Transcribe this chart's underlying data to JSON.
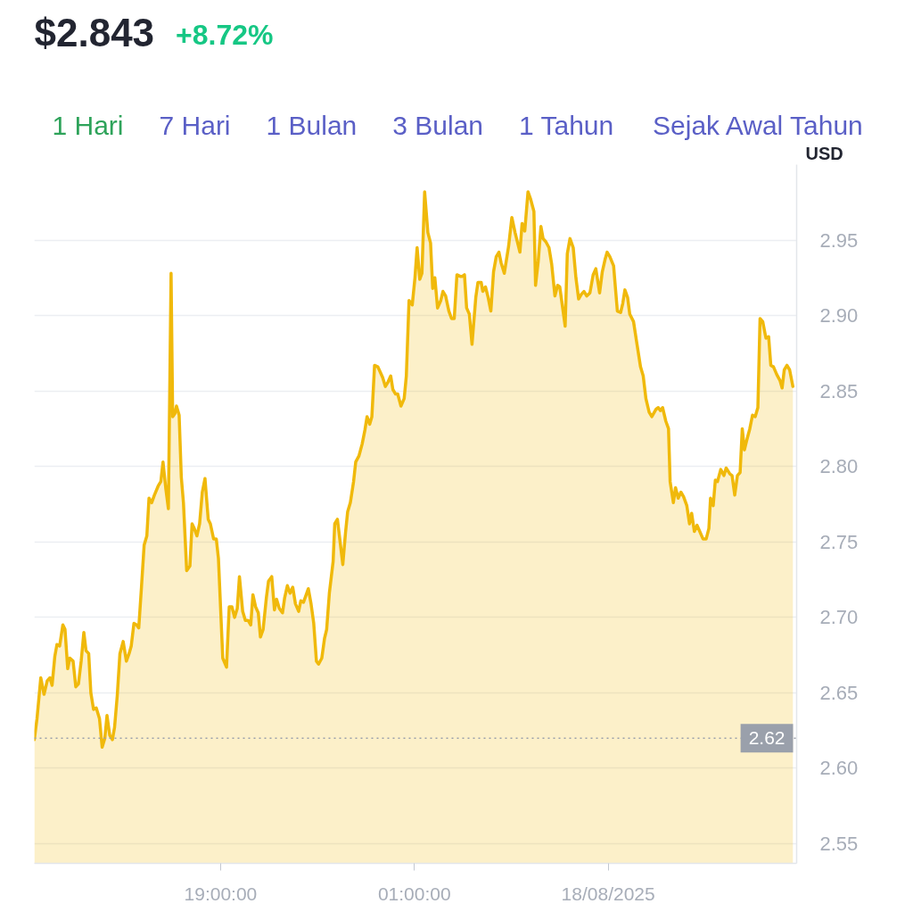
{
  "chart_data": {
    "type": "area",
    "title": "$2.843",
    "subtitle": "+8.72%",
    "ylabel": "USD",
    "annotations": [
      "1 Hari",
      "7 Hari",
      "1 Bulan",
      "3 Bulan",
      "1 Tahun",
      "Sejak Awal Tahun"
    ],
    "xlim": [
      "2025-08-17T13:14",
      "2025-08-18T12:50"
    ],
    "xticks": [
      {
        "value": "2025-08-17T19:00",
        "label": "19:00:00"
      },
      {
        "value": "2025-08-18T01:00",
        "label": "01:00:00"
      },
      {
        "value": "2025-08-18T07:00",
        "label": "18/08/2025"
      }
    ],
    "ylim": [
      2.537,
      3.0
    ],
    "yticks": [
      2.55,
      {
        "value": 2.6,
        "label": "2.60"
      },
      2.65,
      {
        "value": 2.7,
        "label": "2.70"
      },
      2.75,
      {
        "value": 2.8,
        "label": "2.80"
      },
      2.85,
      {
        "value": 2.9,
        "label": "2.90"
      },
      2.95
    ],
    "grid": "y",
    "ref_lines": [
      {
        "axis": "y",
        "value": 2.62,
        "label": "2.62",
        "color": "#9aa0ab",
        "line_style": "dotted"
      }
    ],
    "x": [
      "2025-08-17T13:14",
      "2025-08-17T13:19",
      "2025-08-17T13:26",
      "2025-08-17T13:32",
      "2025-08-17T13:38",
      "2025-08-17T13:43",
      "2025-08-17T13:47",
      "2025-08-17T13:52",
      "2025-08-17T13:56",
      "2025-08-17T14:01",
      "2025-08-17T14:07",
      "2025-08-17T14:11",
      "2025-08-17T14:16",
      "2025-08-17T14:20",
      "2025-08-17T14:26",
      "2025-08-17T14:31",
      "2025-08-17T14:36",
      "2025-08-17T14:41",
      "2025-08-17T14:46",
      "2025-08-17T14:50",
      "2025-08-17T14:55",
      "2025-08-17T14:59",
      "2025-08-17T15:04",
      "2025-08-17T15:09",
      "2025-08-17T15:15",
      "2025-08-17T15:20",
      "2025-08-17T15:25",
      "2025-08-17T15:29",
      "2025-08-17T15:34",
      "2025-08-17T15:39",
      "2025-08-17T15:43",
      "2025-08-17T15:48",
      "2025-08-17T15:53",
      "2025-08-17T15:59",
      "2025-08-17T16:05",
      "2025-08-17T16:10",
      "2025-08-17T16:14",
      "2025-08-17T16:19",
      "2025-08-17T16:24",
      "2025-08-17T16:28",
      "2025-08-17T16:33",
      "2025-08-17T16:38",
      "2025-08-17T16:43",
      "2025-08-17T16:47",
      "2025-08-17T16:52",
      "2025-08-17T16:57",
      "2025-08-17T17:04",
      "2025-08-17T17:09",
      "2025-08-17T17:13",
      "2025-08-17T17:18",
      "2025-08-17T17:23",
      "2025-08-17T17:25",
      "2025-08-17T17:28",
      "2025-08-17T17:31",
      "2025-08-17T17:35",
      "2025-08-17T17:38",
      "2025-08-17T17:43",
      "2025-08-17T17:47",
      "2025-08-17T17:51",
      "2025-08-17T17:57",
      "2025-08-17T18:03",
      "2025-08-17T18:07",
      "2025-08-17T18:11",
      "2025-08-17T18:16",
      "2025-08-17T18:21",
      "2025-08-17T18:26",
      "2025-08-17T18:31",
      "2025-08-17T18:33",
      "2025-08-17T18:37",
      "2025-08-17T18:41",
      "2025-08-17T18:47",
      "2025-08-17T18:52",
      "2025-08-17T18:56",
      "2025-08-17T19:04",
      "2025-08-17T19:11",
      "2025-08-17T19:16",
      "2025-08-17T19:21",
      "2025-08-17T19:26",
      "2025-08-17T19:31",
      "2025-08-17T19:35",
      "2025-08-17T19:41",
      "2025-08-17T19:46",
      "2025-08-17T19:51",
      "2025-08-17T19:56",
      "2025-08-17T20:00",
      "2025-08-17T20:05",
      "2025-08-17T20:10",
      "2025-08-17T20:14",
      "2025-08-17T20:19",
      "2025-08-17T20:25",
      "2025-08-17T20:29",
      "2025-08-17T20:35",
      "2025-08-17T20:40",
      "2025-08-17T20:44",
      "2025-08-17T20:49",
      "2025-08-17T20:55",
      "2025-08-17T20:59",
      "2025-08-17T21:04",
      "2025-08-17T21:09",
      "2025-08-17T21:14",
      "2025-08-17T21:19",
      "2025-08-17T21:25",
      "2025-08-17T21:29",
      "2025-08-17T21:34",
      "2025-08-17T21:38",
      "2025-08-17T21:43",
      "2025-08-17T21:48",
      "2025-08-17T21:53",
      "2025-08-17T21:58",
      "2025-08-17T22:02",
      "2025-08-17T22:08",
      "2025-08-17T22:13",
      "2025-08-17T22:17",
      "2025-08-17T22:22",
      "2025-08-17T22:29",
      "2025-08-17T22:32",
      "2025-08-17T22:37",
      "2025-08-17T22:42",
      "2025-08-17T22:47",
      "2025-08-17T22:52",
      "2025-08-17T22:56",
      "2025-08-17T23:01",
      "2025-08-17T23:07",
      "2025-08-17T23:11",
      "2025-08-17T23:17",
      "2025-08-17T23:23",
      "2025-08-17T23:28",
      "2025-08-17T23:32",
      "2025-08-17T23:37",
      "2025-08-17T23:41",
      "2025-08-17T23:46",
      "2025-08-17T23:52",
      "2025-08-17T23:56",
      "2025-08-18T00:01",
      "2025-08-18T00:06",
      "2025-08-18T00:11",
      "2025-08-18T00:16",
      "2025-08-18T00:20",
      "2025-08-18T00:25",
      "2025-08-18T00:29",
      "2025-08-18T00:35",
      "2025-08-18T00:41",
      "2025-08-18T00:45",
      "2025-08-18T00:50",
      "2025-08-18T00:56",
      "2025-08-18T01:01",
      "2025-08-18T01:05",
      "2025-08-18T01:10",
      "2025-08-18T01:14",
      "2025-08-18T01:19",
      "2025-08-18T01:25",
      "2025-08-18T01:30",
      "2025-08-18T01:34",
      "2025-08-18T01:38",
      "2025-08-18T01:43",
      "2025-08-18T01:49",
      "2025-08-18T01:53",
      "2025-08-18T01:58",
      "2025-08-18T02:04",
      "2025-08-18T02:09",
      "2025-08-18T02:14",
      "2025-08-18T02:19",
      "2025-08-18T02:25",
      "2025-08-18T02:29",
      "2025-08-18T02:33",
      "2025-08-18T02:37",
      "2025-08-18T02:42",
      "2025-08-18T02:47",
      "2025-08-18T02:54",
      "2025-08-18T02:58",
      "2025-08-18T03:04",
      "2025-08-18T03:07",
      "2025-08-18T03:12",
      "2025-08-18T03:17",
      "2025-08-18T03:22",
      "2025-08-18T03:27",
      "2025-08-18T03:32",
      "2025-08-18T03:37",
      "2025-08-18T03:41",
      "2025-08-18T03:47",
      "2025-08-18T03:55",
      "2025-08-18T04:01",
      "2025-08-18T04:07",
      "2025-08-18T04:16",
      "2025-08-18T04:20",
      "2025-08-18T04:25",
      "2025-08-18T04:31",
      "2025-08-18T04:36",
      "2025-08-18T04:42",
      "2025-08-18T04:45",
      "2025-08-18T04:50",
      "2025-08-18T04:55",
      "2025-08-18T04:59",
      "2025-08-18T05:04",
      "2025-08-18T05:10",
      "2025-08-18T05:15",
      "2025-08-18T05:21",
      "2025-08-18T05:26",
      "2025-08-18T05:30",
      "2025-08-18T05:35",
      "2025-08-18T05:40",
      "2025-08-18T05:44",
      "2025-08-18T05:49",
      "2025-08-18T05:55",
      "2025-08-18T06:00",
      "2025-08-18T06:05",
      "2025-08-18T06:10",
      "2025-08-18T06:15",
      "2025-08-18T06:20",
      "2025-08-18T06:26",
      "2025-08-18T06:32",
      "2025-08-18T06:37",
      "2025-08-18T06:44",
      "2025-08-18T06:49",
      "2025-08-18T06:54",
      "2025-08-18T06:58",
      "2025-08-18T07:03",
      "2025-08-18T07:10",
      "2025-08-18T07:13",
      "2025-08-18T07:17",
      "2025-08-18T07:23",
      "2025-08-18T07:27",
      "2025-08-18T07:31",
      "2025-08-18T07:36",
      "2025-08-18T07:40",
      "2025-08-18T07:47",
      "2025-08-18T07:53",
      "2025-08-18T08:00",
      "2025-08-18T08:05",
      "2025-08-18T08:10",
      "2025-08-18T08:16",
      "2025-08-18T08:21",
      "2025-08-18T08:29",
      "2025-08-18T08:33",
      "2025-08-18T08:37",
      "2025-08-18T08:41",
      "2025-08-18T08:47",
      "2025-08-18T08:52",
      "2025-08-18T08:55",
      "2025-08-18T09:01",
      "2025-08-18T09:05",
      "2025-08-18T09:10",
      "2025-08-18T09:15",
      "2025-08-18T09:20",
      "2025-08-18T09:26",
      "2025-08-18T09:31",
      "2025-08-18T09:35",
      "2025-08-18T09:40",
      "2025-08-18T09:45",
      "2025-08-18T09:50",
      "2025-08-18T09:56",
      "2025-08-18T10:02",
      "2025-08-18T10:07",
      "2025-08-18T10:10",
      "2025-08-18T10:15",
      "2025-08-18T10:19",
      "2025-08-18T10:23",
      "2025-08-18T10:29",
      "2025-08-18T10:35",
      "2025-08-18T10:39",
      "2025-08-18T10:46",
      "2025-08-18T10:50",
      "2025-08-18T10:55",
      "2025-08-18T11:00",
      "2025-08-18T11:05",
      "2025-08-18T11:09",
      "2025-08-18T11:13",
      "2025-08-18T11:17",
      "2025-08-18T11:23",
      "2025-08-18T11:28",
      "2025-08-18T11:33",
      "2025-08-18T11:38",
      "2025-08-18T11:42",
      "2025-08-18T11:47",
      "2025-08-18T11:53",
      "2025-08-18T11:58",
      "2025-08-18T12:02",
      "2025-08-18T12:07",
      "2025-08-18T12:13",
      "2025-08-18T12:19",
      "2025-08-18T12:23",
      "2025-08-18T12:27",
      "2025-08-18T12:32",
      "2025-08-18T12:37",
      "2025-08-18T12:43"
    ],
    "series": [
      {
        "color": "#f0b90b",
        "values": [
          2.619,
          2.633,
          2.66,
          2.649,
          2.658,
          2.66,
          2.655,
          2.674,
          2.682,
          2.681,
          2.695,
          2.692,
          2.666,
          2.673,
          2.671,
          2.654,
          2.656,
          2.671,
          2.69,
          2.678,
          2.676,
          2.65,
          2.639,
          2.64,
          2.633,
          2.614,
          2.62,
          2.635,
          2.622,
          2.619,
          2.627,
          2.648,
          2.676,
          2.684,
          2.671,
          2.676,
          2.681,
          2.696,
          2.695,
          2.693,
          2.72,
          2.748,
          2.754,
          2.779,
          2.776,
          2.781,
          2.787,
          2.79,
          2.803,
          2.786,
          2.772,
          2.834,
          2.928,
          2.833,
          2.835,
          2.84,
          2.834,
          2.793,
          2.776,
          2.731,
          2.734,
          2.762,
          2.759,
          2.754,
          2.762,
          2.783,
          2.792,
          2.783,
          2.765,
          2.762,
          2.752,
          2.752,
          2.739,
          2.673,
          2.667,
          2.707,
          2.707,
          2.7,
          2.706,
          2.727,
          2.704,
          2.698,
          2.698,
          2.695,
          2.715,
          2.707,
          2.703,
          2.687,
          2.692,
          2.713,
          2.724,
          2.727,
          2.705,
          2.712,
          2.706,
          2.703,
          2.713,
          2.721,
          2.716,
          2.72,
          2.709,
          2.704,
          2.711,
          2.71,
          2.714,
          2.719,
          2.709,
          2.696,
          2.671,
          2.669,
          2.673,
          2.686,
          2.692,
          2.716,
          2.737,
          2.762,
          2.765,
          2.75,
          2.735,
          2.756,
          2.77,
          2.776,
          2.79,
          2.803,
          2.807,
          2.815,
          2.824,
          2.833,
          2.828,
          2.833,
          2.867,
          2.866,
          2.863,
          2.859,
          2.853,
          2.856,
          2.86,
          2.851,
          2.848,
          2.848,
          2.84,
          2.845,
          2.86,
          2.91,
          2.907,
          2.925,
          2.945,
          2.924,
          2.928,
          2.982,
          2.955,
          2.948,
          2.918,
          2.925,
          2.905,
          2.91,
          2.916,
          2.913,
          2.903,
          2.898,
          2.898,
          2.927,
          2.926,
          2.926,
          2.927,
          2.905,
          2.901,
          2.881,
          2.912,
          2.922,
          2.922,
          2.916,
          2.919,
          2.912,
          2.903,
          2.929,
          2.939,
          2.942,
          2.935,
          2.928,
          2.946,
          2.965,
          2.955,
          2.942,
          2.961,
          2.956,
          2.982,
          2.977,
          2.969,
          2.92,
          2.936,
          2.959,
          2.951,
          2.949,
          2.945,
          2.934,
          2.913,
          2.92,
          2.919,
          2.906,
          2.893,
          2.941,
          2.951,
          2.945,
          2.925,
          2.911,
          2.914,
          2.916,
          2.913,
          2.915,
          2.927,
          2.931,
          2.915,
          2.929,
          2.937,
          2.942,
          2.939,
          2.933,
          2.92,
          2.903,
          2.902,
          2.908,
          2.917,
          2.912,
          2.901,
          2.896,
          2.882,
          2.866,
          2.86,
          2.845,
          2.836,
          2.833,
          2.838,
          2.839,
          2.837,
          2.839,
          2.83,
          2.825,
          2.79,
          2.776,
          2.786,
          2.779,
          2.783,
          2.78,
          2.774,
          2.762,
          2.769,
          2.757,
          2.761,
          2.757,
          2.752,
          2.752,
          2.759,
          2.779,
          2.774,
          2.791,
          2.79,
          2.798,
          2.794,
          2.799,
          2.795,
          2.794,
          2.781,
          2.794,
          2.796,
          2.825,
          2.811,
          2.817,
          2.825,
          2.834,
          2.833,
          2.839,
          2.898,
          2.896,
          2.885,
          2.886,
          2.867,
          2.866,
          2.861,
          2.857,
          2.852,
          2.864,
          2.867,
          2.864,
          2.853
        ]
      }
    ]
  }
}
